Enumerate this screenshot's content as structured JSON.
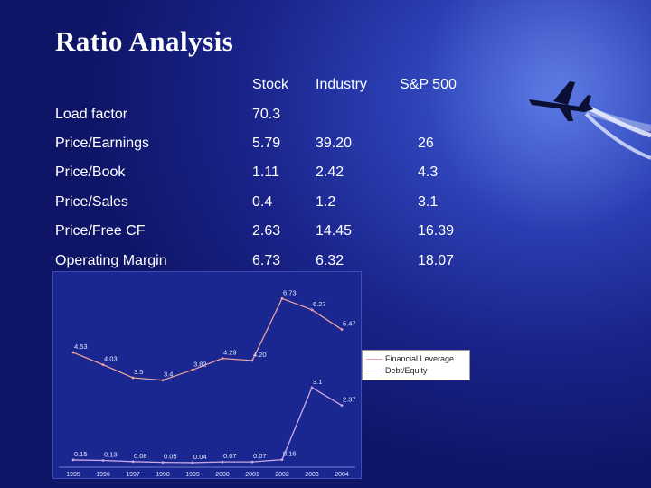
{
  "slide": {
    "title": "Ratio Analysis"
  },
  "table": {
    "headers": [
      "Stock",
      "Industry",
      "S&P 500"
    ],
    "rows": [
      {
        "label": "Load factor",
        "stock": "70.3",
        "industry": "",
        "sp500": ""
      },
      {
        "label": "Price/Earnings",
        "stock": "5.79",
        "industry": "39.20",
        "sp500": "26"
      },
      {
        "label": "Price/Book",
        "stock": "1.11",
        "industry": "2.42",
        "sp500": "4.3"
      },
      {
        "label": "Price/Sales",
        "stock": "0.4",
        "industry": "1.2",
        "sp500": "3.1"
      },
      {
        "label": "Price/Free CF",
        "stock": "2.63",
        "industry": "14.45",
        "sp500": "16.39"
      },
      {
        "label": "Operating Margin",
        "stock": "6.73",
        "industry": "6.32",
        "sp500": "18.07"
      }
    ]
  },
  "colors": {
    "background": "#1a238a",
    "text": "#ffffff",
    "financial_leverage": "#e8a2a2",
    "debt_equity": "#c8a8e8"
  },
  "chart_data": {
    "type": "line",
    "title": "",
    "xlabel": "",
    "ylabel": "",
    "categories": [
      "1995",
      "1996",
      "1997",
      "1998",
      "1999",
      "2000",
      "2001",
      "2002",
      "2003",
      "2004"
    ],
    "ylim": [
      0,
      7
    ],
    "legend_position": "right",
    "series": [
      {
        "name": "Financial Leverage",
        "values": [
          4.53,
          4.03,
          3.5,
          3.4,
          3.82,
          4.29,
          4.2,
          6.73,
          6.27,
          5.47
        ],
        "labels": [
          "4.53",
          "4.03",
          "3.5",
          "3.4",
          "3.82",
          "4.29",
          "4.20",
          "6.73",
          "6.27",
          "5.47"
        ]
      },
      {
        "name": "Debt/Equity",
        "values": [
          0.15,
          0.13,
          0.08,
          0.05,
          0.04,
          0.07,
          0.07,
          0.16,
          3.1,
          2.37
        ],
        "labels": [
          "0.15",
          "0.13",
          "0.08",
          "0.05",
          "0.04",
          "0.07",
          "0.07",
          "0.16",
          "3.1",
          "2.37"
        ]
      }
    ]
  }
}
